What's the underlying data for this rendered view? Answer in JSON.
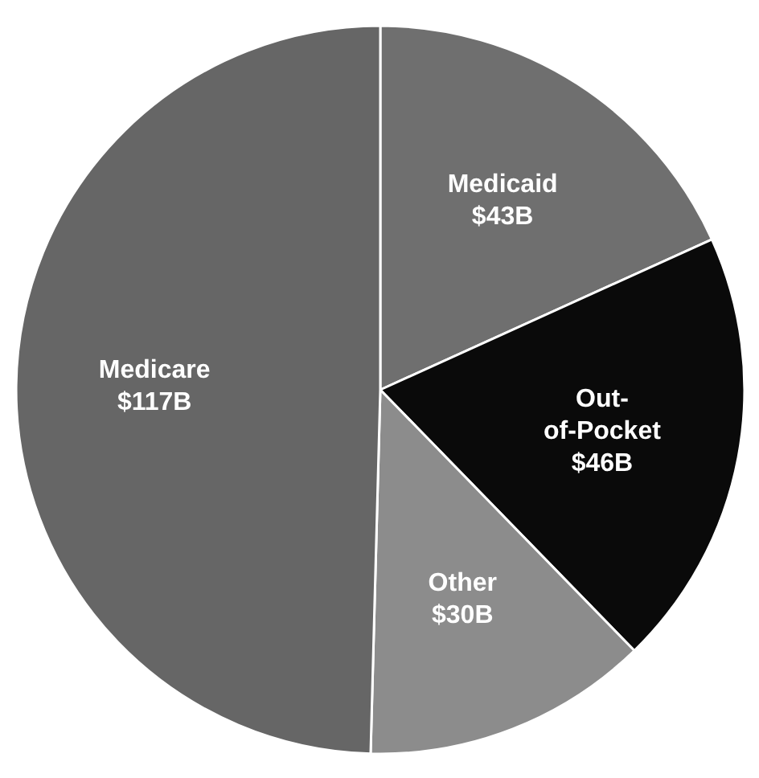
{
  "chart_data": {
    "type": "pie",
    "categories": [
      "Medicaid",
      "Out-of-Pocket",
      "Other",
      "Medicare"
    ],
    "values": [
      43,
      46,
      30,
      117
    ],
    "value_labels": [
      "$43B",
      "$46B",
      "$30B",
      "$117B"
    ],
    "colors": [
      "#6f6f6f",
      "#0a0a0a",
      "#8c8c8c",
      "#666666"
    ]
  }
}
